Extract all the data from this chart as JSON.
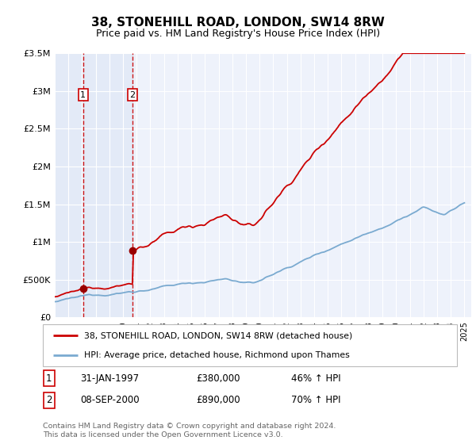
{
  "title": "38, STONEHILL ROAD, LONDON, SW14 8RW",
  "subtitle": "Price paid vs. HM Land Registry's House Price Index (HPI)",
  "legend_label_red": "38, STONEHILL ROAD, LONDON, SW14 8RW (detached house)",
  "legend_label_blue": "HPI: Average price, detached house, Richmond upon Thames",
  "annotation_label": "Contains HM Land Registry data © Crown copyright and database right 2024.\nThis data is licensed under the Open Government Licence v3.0.",
  "purchases": [
    {
      "id": 1,
      "date": "31-JAN-1997",
      "price": 380000,
      "hpi_pct": "46% ↑ HPI",
      "year": 1997.08
    },
    {
      "id": 2,
      "date": "08-SEP-2000",
      "price": 890000,
      "hpi_pct": "70% ↑ HPI",
      "year": 2000.69
    }
  ],
  "ylim": [
    0,
    3500000
  ],
  "yticks": [
    0,
    500000,
    1000000,
    1500000,
    2000000,
    2500000,
    3000000,
    3500000
  ],
  "ytick_labels": [
    "£0",
    "£500K",
    "£1M",
    "£1.5M",
    "£2M",
    "£2.5M",
    "£3M",
    "£3.5M"
  ],
  "xlim_start": 1995.0,
  "xlim_end": 2025.5,
  "background_color": "#ffffff",
  "plot_bg_color": "#eef2fb",
  "grid_color": "#ffffff",
  "red_color": "#cc0000",
  "blue_color": "#7aaad0",
  "purchase_marker_color": "#990000",
  "vline_color": "#cc0000",
  "highlight_color": "#dce6f5"
}
